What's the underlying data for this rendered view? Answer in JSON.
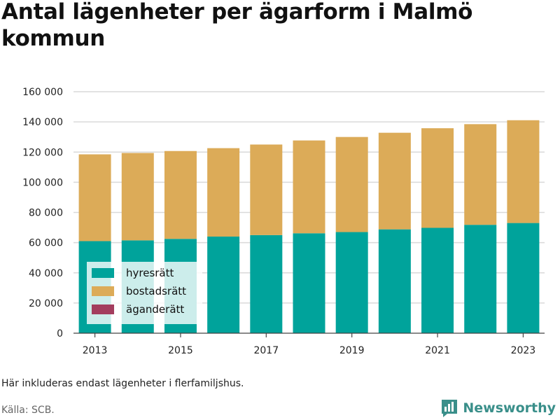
{
  "chart_data": {
    "type": "bar",
    "stacked": true,
    "title": "Antal lägenheter per ägarform i Malmö kommun",
    "categories": [
      "2013",
      "2014",
      "2015",
      "2016",
      "2017",
      "2018",
      "2019",
      "2020",
      "2021",
      "2022",
      "2023"
    ],
    "series": [
      {
        "name": "hyresrätt",
        "color": "#00a39b",
        "values": [
          61000,
          61500,
          62500,
          64000,
          65000,
          66200,
          67000,
          68800,
          69800,
          71800,
          73000
        ]
      },
      {
        "name": "bostadsrätt",
        "color": "#dcab58",
        "values": [
          57500,
          57900,
          58200,
          58600,
          60000,
          61500,
          63000,
          64000,
          66000,
          66700,
          68100
        ]
      },
      {
        "name": "äganderätt",
        "color": "#a33d5e",
        "values": [
          0,
          0,
          0,
          0,
          0,
          0,
          0,
          0,
          0,
          0,
          0
        ]
      }
    ],
    "ylim": [
      0,
      160000
    ],
    "yticks": [
      0,
      20000,
      40000,
      60000,
      80000,
      100000,
      120000,
      140000,
      160000
    ],
    "ytick_labels": [
      "0",
      "20 000",
      "40 000",
      "60 000",
      "80 000",
      "100 000",
      "120 000",
      "140 000",
      "160 000"
    ],
    "xtick_labels": [
      "2013",
      "2015",
      "2017",
      "2019",
      "2021",
      "2023"
    ],
    "xlabel": "",
    "ylabel": "",
    "grid": true,
    "legend_position": "bottom-left"
  },
  "note": "Här inkluderas endast lägenheter i flerfamiljshus.",
  "source": "Källa: SCB.",
  "brand": {
    "name": "Newsworthy",
    "icon": "bar-chart-speech-bubble-icon",
    "color": "#3a8f8a"
  }
}
